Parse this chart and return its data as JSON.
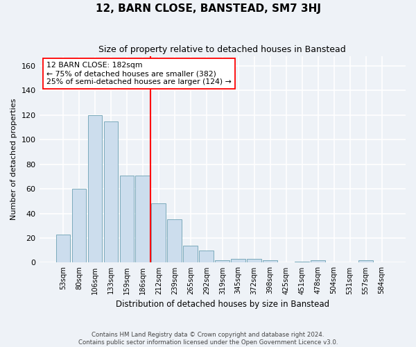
{
  "title": "12, BARN CLOSE, BANSTEAD, SM7 3HJ",
  "subtitle": "Size of property relative to detached houses in Banstead",
  "xlabel": "Distribution of detached houses by size in Banstead",
  "ylabel": "Number of detached properties",
  "bar_labels": [
    "53sqm",
    "80sqm",
    "106sqm",
    "133sqm",
    "159sqm",
    "186sqm",
    "212sqm",
    "239sqm",
    "265sqm",
    "292sqm",
    "319sqm",
    "345sqm",
    "372sqm",
    "398sqm",
    "425sqm",
    "451sqm",
    "478sqm",
    "504sqm",
    "531sqm",
    "557sqm",
    "584sqm"
  ],
  "bar_heights": [
    23,
    60,
    120,
    115,
    71,
    71,
    48,
    35,
    14,
    10,
    2,
    3,
    3,
    2,
    0,
    1,
    2,
    0,
    0,
    2,
    0
  ],
  "bar_color": "#ccdded",
  "bar_edge_color": "#7aaabb",
  "vline_x": 5.5,
  "vline_color": "red",
  "annotation_text": "12 BARN CLOSE: 182sqm\n← 75% of detached houses are smaller (382)\n25% of semi-detached houses are larger (124) →",
  "annotation_box_color": "white",
  "annotation_box_edge": "red",
  "ylim": [
    0,
    168
  ],
  "yticks": [
    0,
    20,
    40,
    60,
    80,
    100,
    120,
    140,
    160
  ],
  "background_color": "#eef2f7",
  "grid_color": "white",
  "footer_line1": "Contains HM Land Registry data © Crown copyright and database right 2024.",
  "footer_line2": "Contains public sector information licensed under the Open Government Licence v3.0."
}
